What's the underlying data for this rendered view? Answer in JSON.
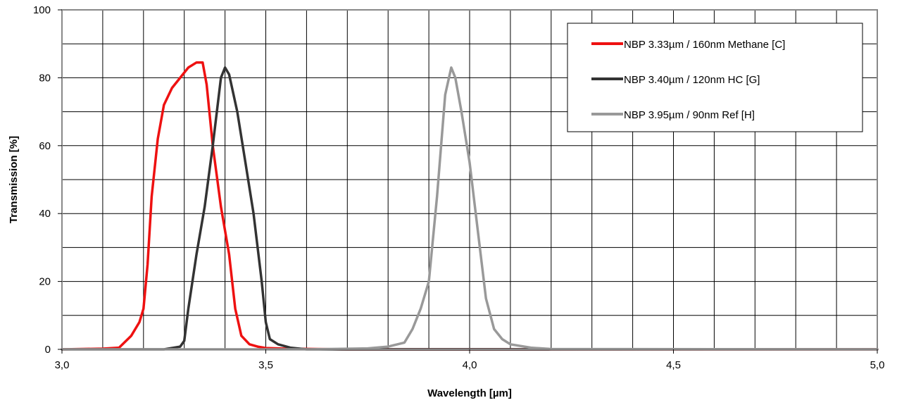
{
  "chart_data": {
    "type": "line",
    "title": "",
    "xlabel": "Wavelength [µm]",
    "ylabel": "Transmission [%]",
    "xlim": [
      3.0,
      5.0
    ],
    "ylim": [
      0,
      100
    ],
    "x_ticks": [
      3.0,
      3.5,
      4.0,
      4.5,
      5.0
    ],
    "x_tick_labels": [
      "3,0",
      "3,5",
      "4,0",
      "4,5",
      "5,0"
    ],
    "y_ticks": [
      0,
      20,
      40,
      60,
      80,
      100
    ],
    "y_tick_labels": [
      "0",
      "20",
      "40",
      "60",
      "80",
      "100"
    ],
    "x_grid_step": 0.1,
    "y_grid_step": 10,
    "grid": true,
    "legend_position": "top-right",
    "series": [
      {
        "name": "NBP 3.33µm / 160nm Methane [C]",
        "color": "#ee1111",
        "points": [
          [
            3.0,
            0
          ],
          [
            3.1,
            0.2
          ],
          [
            3.14,
            0.5
          ],
          [
            3.17,
            4
          ],
          [
            3.19,
            8
          ],
          [
            3.2,
            12
          ],
          [
            3.21,
            25
          ],
          [
            3.22,
            45
          ],
          [
            3.235,
            62
          ],
          [
            3.25,
            72
          ],
          [
            3.27,
            77
          ],
          [
            3.29,
            80
          ],
          [
            3.31,
            83
          ],
          [
            3.33,
            84.5
          ],
          [
            3.345,
            84.5
          ],
          [
            3.355,
            78
          ],
          [
            3.37,
            60
          ],
          [
            3.39,
            42
          ],
          [
            3.41,
            28
          ],
          [
            3.425,
            12
          ],
          [
            3.44,
            4
          ],
          [
            3.46,
            1.5
          ],
          [
            3.48,
            0.8
          ],
          [
            3.5,
            0.4
          ],
          [
            3.55,
            0.2
          ],
          [
            3.7,
            0
          ],
          [
            5.0,
            0
          ]
        ]
      },
      {
        "name": "NBP 3.40µm / 120nm HC [G]",
        "color": "#333333",
        "points": [
          [
            3.0,
            0
          ],
          [
            3.25,
            0
          ],
          [
            3.29,
            0.8
          ],
          [
            3.3,
            2.5
          ],
          [
            3.31,
            12
          ],
          [
            3.33,
            28
          ],
          [
            3.35,
            42
          ],
          [
            3.37,
            60
          ],
          [
            3.39,
            80
          ],
          [
            3.4,
            83
          ],
          [
            3.41,
            81
          ],
          [
            3.43,
            70
          ],
          [
            3.45,
            55
          ],
          [
            3.47,
            40
          ],
          [
            3.49,
            20
          ],
          [
            3.5,
            8
          ],
          [
            3.51,
            3
          ],
          [
            3.53,
            1.5
          ],
          [
            3.56,
            0.5
          ],
          [
            3.6,
            0
          ],
          [
            5.0,
            0
          ]
        ]
      },
      {
        "name": "NBP 3.95µm / 90nm Ref [H]",
        "color": "#999999",
        "points": [
          [
            3.0,
            0
          ],
          [
            3.6,
            0
          ],
          [
            3.75,
            0.3
          ],
          [
            3.8,
            0.8
          ],
          [
            3.84,
            2
          ],
          [
            3.86,
            6
          ],
          [
            3.88,
            12
          ],
          [
            3.9,
            20
          ],
          [
            3.92,
            45
          ],
          [
            3.94,
            75
          ],
          [
            3.955,
            83
          ],
          [
            3.965,
            80
          ],
          [
            3.98,
            70
          ],
          [
            4.0,
            55
          ],
          [
            4.02,
            35
          ],
          [
            4.04,
            15
          ],
          [
            4.06,
            6
          ],
          [
            4.08,
            3
          ],
          [
            4.1,
            1.5
          ],
          [
            4.15,
            0.5
          ],
          [
            4.2,
            0.1
          ],
          [
            5.0,
            0
          ]
        ]
      }
    ]
  }
}
